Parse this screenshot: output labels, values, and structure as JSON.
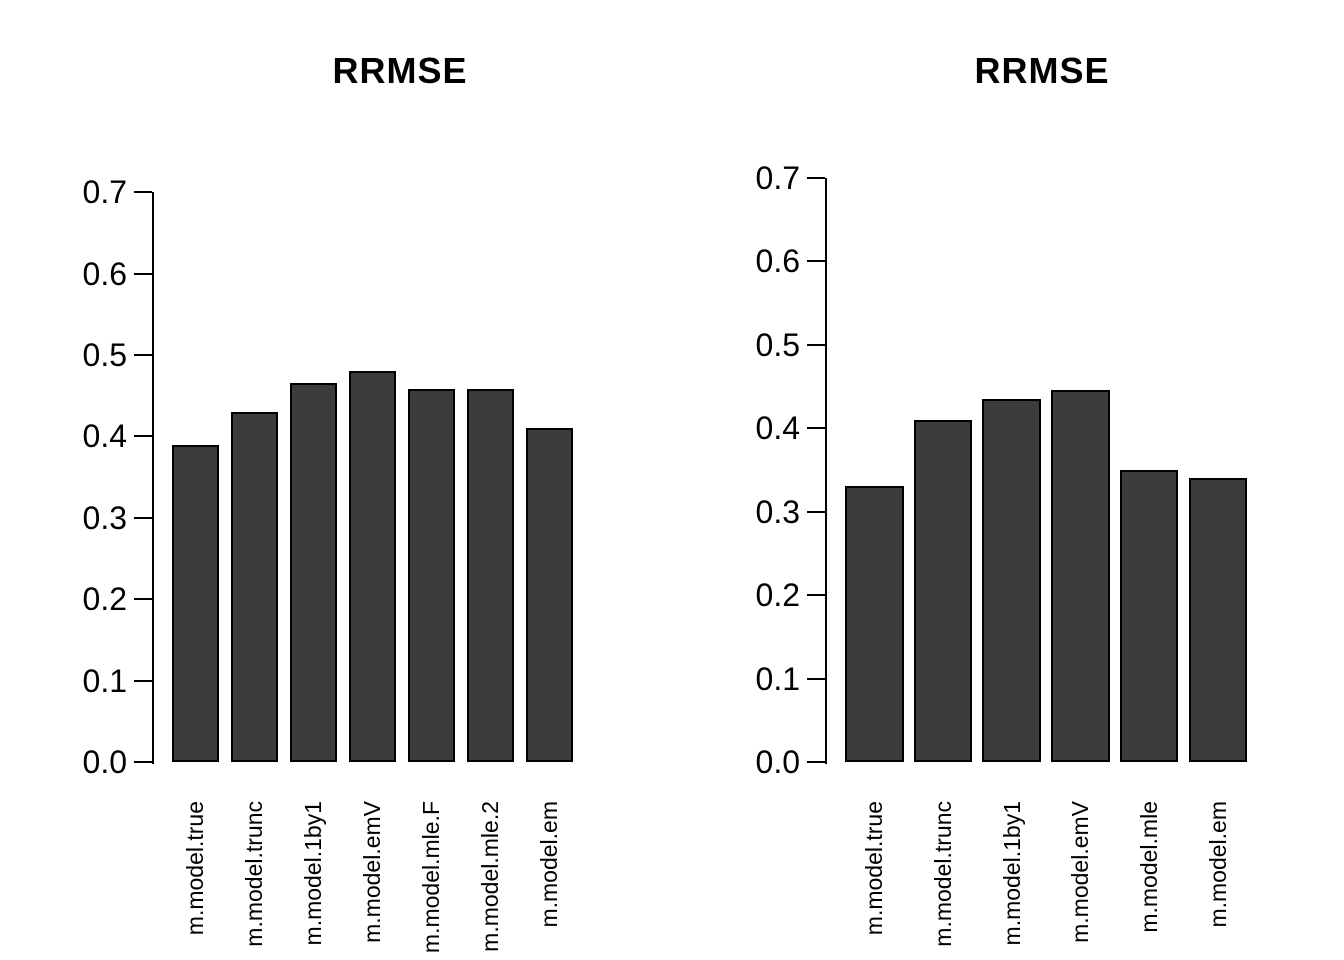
{
  "page": {
    "background_color": "#ffffff",
    "text_color": "#000000",
    "bar_fill_color": "#3c3c3c",
    "bar_border_color": "#000000"
  },
  "chart_data": [
    {
      "type": "bar",
      "title": "RRMSE",
      "categories": [
        "m.model.true",
        "m.model.trunc",
        "m.model.1by1",
        "m.model.emV",
        "m.model.mle.F",
        "m.model.mle.2",
        "m.model.em"
      ],
      "values": [
        0.39,
        0.43,
        0.465,
        0.48,
        0.458,
        0.458,
        0.41
      ],
      "xlabel": "",
      "ylabel": "",
      "ylim": [
        0.0,
        0.7
      ],
      "yticks": [
        0.0,
        0.1,
        0.2,
        0.3,
        0.4,
        0.5,
        0.6,
        0.7
      ],
      "grid": false,
      "legend_position": "none",
      "x_tick_rotation_deg": 90
    },
    {
      "type": "bar",
      "title": "RRMSE",
      "categories": [
        "m.model.true",
        "m.model.trunc",
        "m.model.1by1",
        "m.model.emV",
        "m.model.mle",
        "m.model.em"
      ],
      "values": [
        0.33,
        0.41,
        0.435,
        0.445,
        0.35,
        0.34
      ],
      "xlabel": "",
      "ylabel": "",
      "ylim": [
        0.0,
        0.7
      ],
      "yticks": [
        0.0,
        0.1,
        0.2,
        0.3,
        0.4,
        0.5,
        0.6,
        0.7
      ],
      "grid": false,
      "legend_position": "none",
      "x_tick_rotation_deg": 90
    }
  ]
}
